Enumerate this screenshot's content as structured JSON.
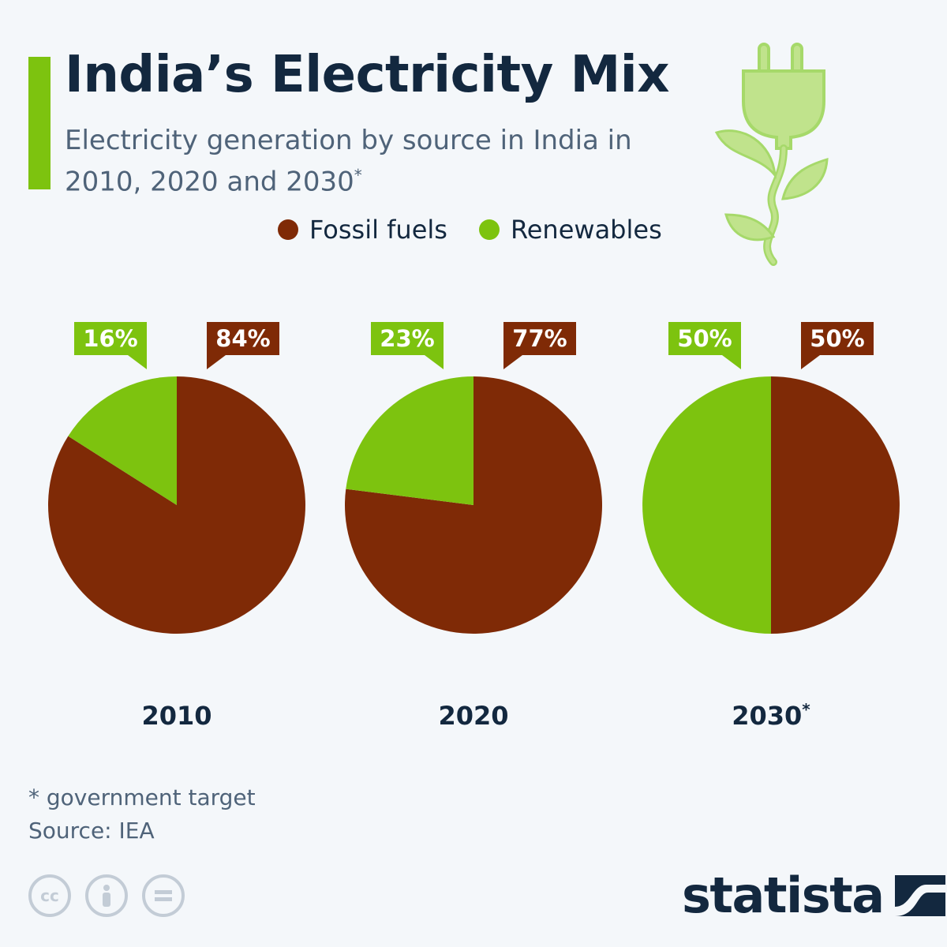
{
  "header": {
    "title": "India’s Electricity Mix",
    "subtitle": "Electricity generation by source in India in 2010, 2020 and 2030",
    "subtitle_mark": "*"
  },
  "legend": [
    {
      "label": "Fossil fuels",
      "color": "#7f2a06"
    },
    {
      "label": "Renewables",
      "color": "#7dc30f"
    }
  ],
  "chart_data": [
    {
      "type": "pie",
      "title": "2010",
      "title_mark": "",
      "slices": [
        {
          "name": "Renewables",
          "value": 16,
          "label": "16%",
          "color": "#7dc30f"
        },
        {
          "name": "Fossil fuels",
          "value": 84,
          "label": "84%",
          "color": "#7f2a06"
        }
      ]
    },
    {
      "type": "pie",
      "title": "2020",
      "title_mark": "",
      "slices": [
        {
          "name": "Renewables",
          "value": 23,
          "label": "23%",
          "color": "#7dc30f"
        },
        {
          "name": "Fossil fuels",
          "value": 77,
          "label": "77%",
          "color": "#7f2a06"
        }
      ]
    },
    {
      "type": "pie",
      "title": "2030",
      "title_mark": "*",
      "slices": [
        {
          "name": "Renewables",
          "value": 50,
          "label": "50%",
          "color": "#7dc30f"
        },
        {
          "name": "Fossil fuels",
          "value": 50,
          "label": "50%",
          "color": "#7f2a06"
        }
      ]
    }
  ],
  "footer": {
    "note": "* government target",
    "source": "Source: IEA",
    "brand": "statista",
    "license_icons": [
      "cc-icon",
      "attribution-icon",
      "no-derivatives-icon"
    ]
  },
  "icons": {
    "plug": "plug-plant-icon"
  }
}
